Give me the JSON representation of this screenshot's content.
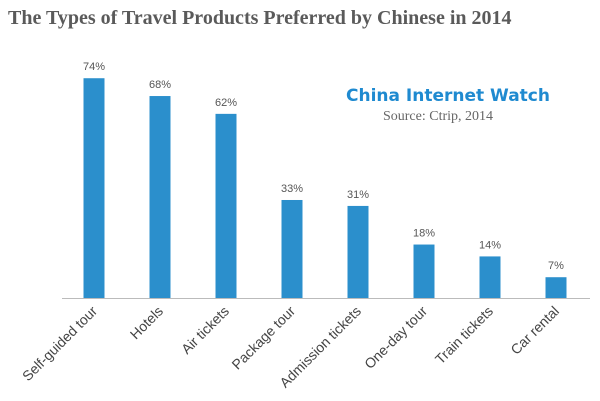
{
  "chart_data": {
    "type": "bar",
    "title": "The Types of Travel Products Preferred by Chinese in 2014",
    "annotations": [
      "China Internet Watch",
      "Source: Ctrip, 2014"
    ],
    "categories": [
      "Self-guided tour",
      "Hotels",
      "Air tickets",
      "Package tour",
      "Admission tickets",
      "One-day tour",
      "Train tickets",
      "Car rental"
    ],
    "values": [
      74,
      68,
      62,
      33,
      31,
      18,
      14,
      7
    ],
    "value_labels": [
      "74%",
      "68%",
      "62%",
      "33%",
      "31%",
      "18%",
      "14%",
      "7%"
    ],
    "color": "#2b8fcc"
  }
}
